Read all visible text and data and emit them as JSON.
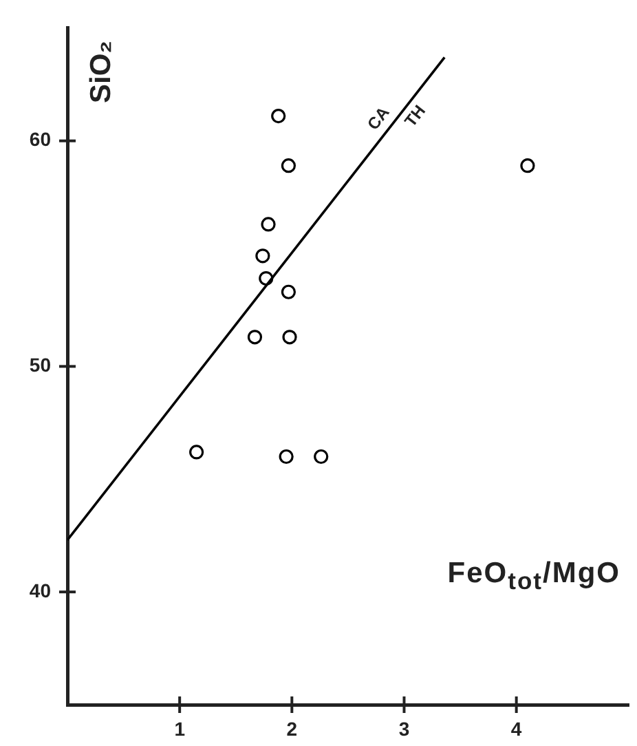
{
  "chart_data": {
    "type": "scatter",
    "xlabel": "FeO$_{tot}$/MgO",
    "ylabel": "SiO₂",
    "xlim": [
      0,
      5
    ],
    "ylim": [
      35,
      65
    ],
    "xticks": [
      1,
      2,
      3,
      4
    ],
    "yticks": [
      40,
      50,
      60
    ],
    "grid": false,
    "legend": false,
    "annotations": [
      "CA",
      "TH"
    ],
    "series": [
      {
        "type": "scatter",
        "color": "#000000",
        "marker": "circle",
        "x": [
          1.88,
          1.97,
          4.1,
          1.79,
          1.74,
          1.77,
          1.97,
          1.67,
          1.98,
          1.15,
          1.95,
          2.26
        ],
        "values": [
          61.1,
          58.9,
          58.9,
          56.3,
          54.9,
          53.9,
          53.3,
          51.3,
          51.3,
          46.2,
          46.0,
          46.0
        ]
      },
      {
        "type": "line",
        "color": "#000000",
        "marker": "none",
        "x": [
          0,
          3.36
        ],
        "values": [
          42.3,
          63.7
        ]
      }
    ]
  }
}
